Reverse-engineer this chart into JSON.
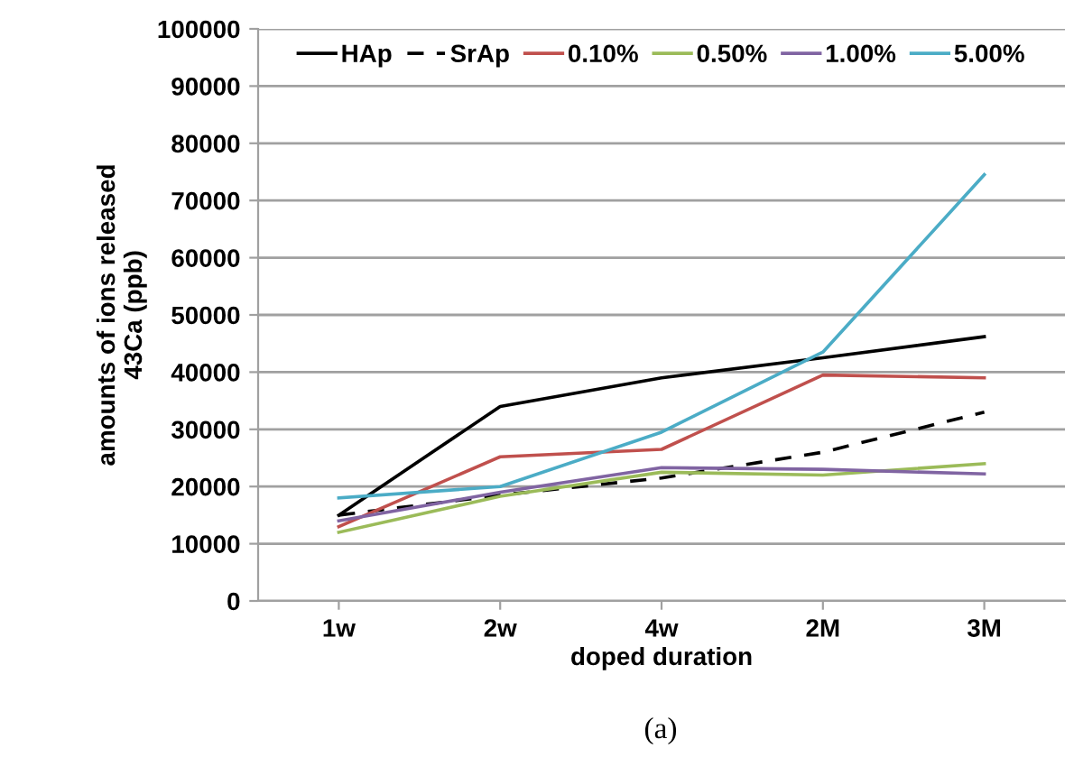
{
  "chart_data": {
    "type": "line",
    "xlabel": "doped duration",
    "ylabel": "amounts of ions released\n43Ca (ppb)",
    "categories": [
      "1w",
      "2w",
      "4w",
      "2M",
      "3M"
    ],
    "series": [
      {
        "name": "HAp",
        "color": "#000000",
        "values": [
          15000,
          34000,
          39000,
          42500,
          46200
        ]
      },
      {
        "name": "SrAp",
        "color": "#000000",
        "line_style": "dashed",
        "values": [
          15000,
          18500,
          21500,
          26000,
          33000
        ]
      },
      {
        "name": "0.10%",
        "color": "#c0504d",
        "values": [
          13000,
          25200,
          26500,
          39500,
          39000
        ]
      },
      {
        "name": "0.50%",
        "color": "#9bbb59",
        "values": [
          12000,
          18300,
          22500,
          22000,
          24000
        ]
      },
      {
        "name": "1.00%",
        "color": "#8064a2",
        "values": [
          14000,
          19000,
          23300,
          23000,
          22200
        ]
      },
      {
        "name": "5.00%",
        "color": "#4bacc6",
        "values": [
          18000,
          20000,
          29500,
          43500,
          74500
        ]
      }
    ],
    "ylim": [
      0,
      100000
    ],
    "yticks": [
      0,
      10000,
      20000,
      30000,
      40000,
      50000,
      60000,
      70000,
      80000,
      90000,
      100000
    ],
    "grid": "y",
    "legend": "top",
    "line_style": "solid",
    "marker": "none",
    "annotations": [
      "(a)"
    ]
  }
}
